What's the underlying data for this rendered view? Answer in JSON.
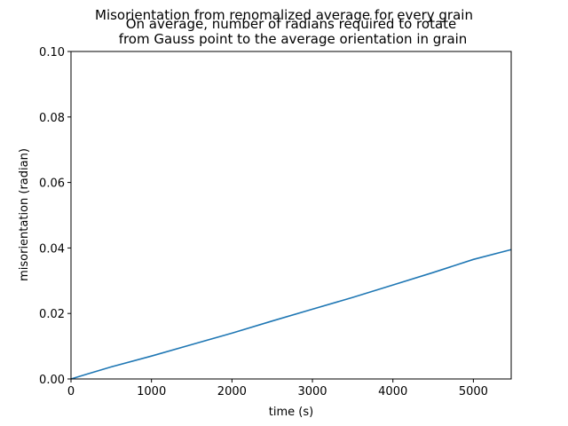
{
  "chart_data": {
    "type": "line",
    "title": "Misorientation from renomalized average for every grain",
    "subtitle_lines": [
      "On average, number of radians required to rotate",
      "from Gauss point to the average orientation in grain"
    ],
    "xlabel": "time (s)",
    "ylabel": "misorientation (radian)",
    "xlim": [
      0,
      5470
    ],
    "ylim": [
      0,
      0.1
    ],
    "xticks": [
      0,
      1000,
      2000,
      3000,
      4000,
      5000
    ],
    "xtick_labels": [
      "0",
      "1000",
      "2000",
      "3000",
      "4000",
      "5000"
    ],
    "yticks": [
      0,
      0.02,
      0.04,
      0.06,
      0.08,
      0.1
    ],
    "ytick_labels": [
      "0.00",
      "0.02",
      "0.04",
      "0.06",
      "0.08",
      "0.10"
    ],
    "grid": false,
    "series": [
      {
        "color": "#1f77b4",
        "x": [
          0,
          200,
          500,
          1000,
          1500,
          2000,
          2500,
          3000,
          3500,
          4000,
          4500,
          5000,
          5470
        ],
        "y": [
          0,
          0.0015,
          0.0037,
          0.007,
          0.0105,
          0.014,
          0.0177,
          0.0213,
          0.0249,
          0.0287,
          0.0325,
          0.0365,
          0.0395
        ]
      }
    ]
  }
}
